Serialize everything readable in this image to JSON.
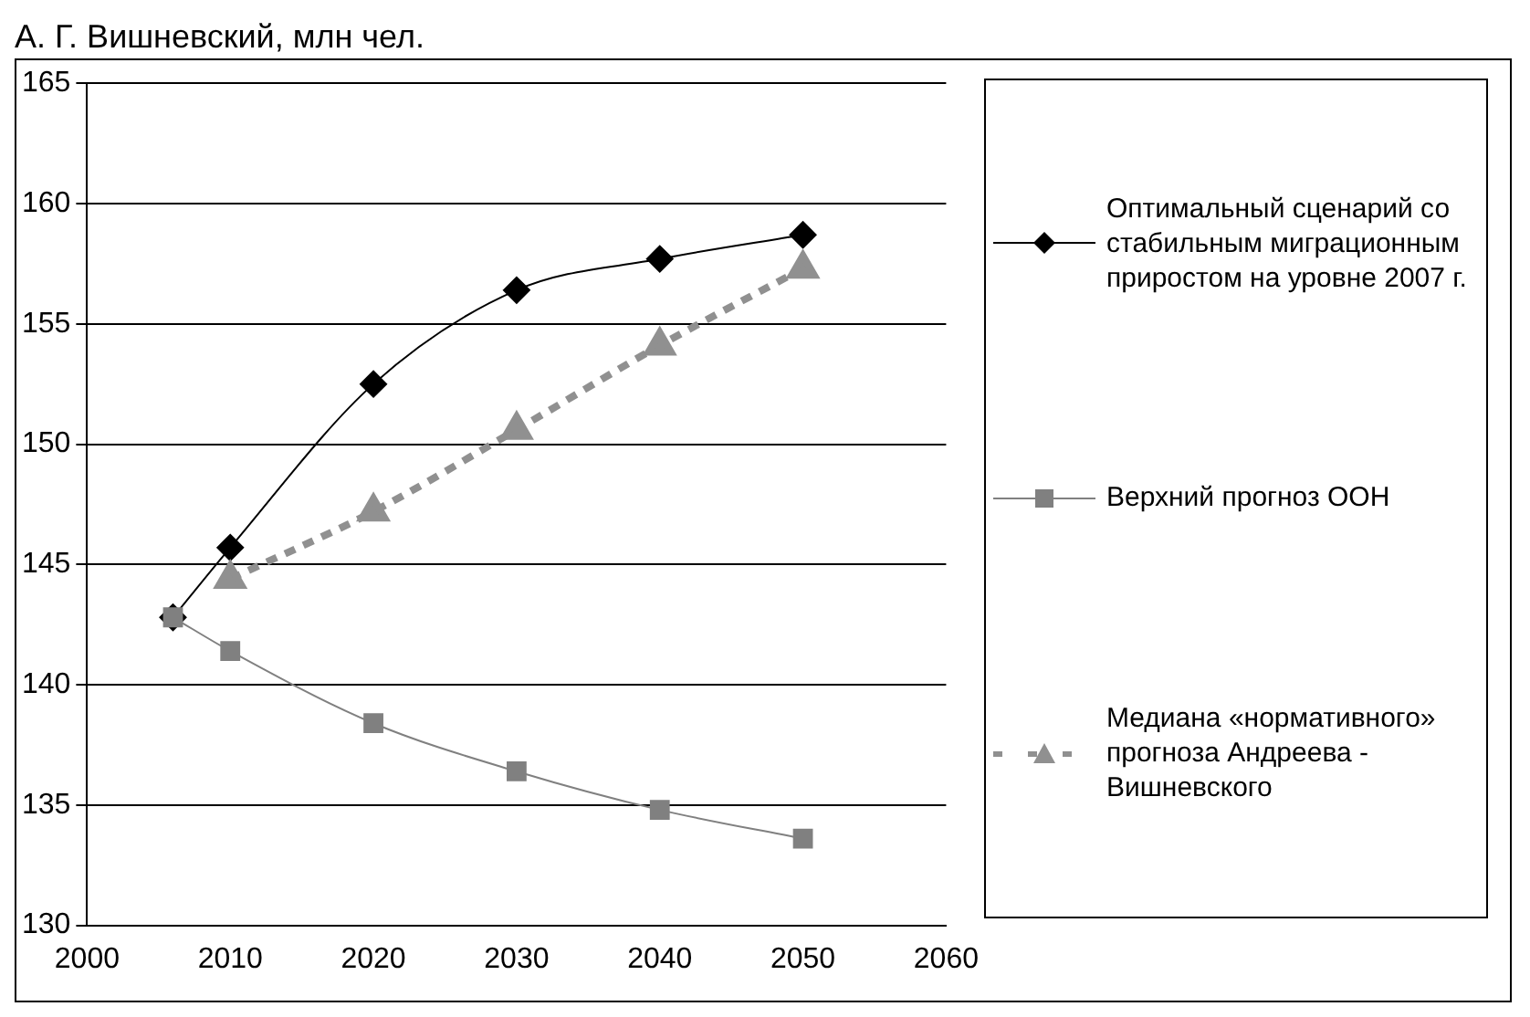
{
  "chart_data": {
    "type": "line",
    "title": "А. Г. Вишневский, млн чел.",
    "xlim": [
      2000,
      2060
    ],
    "xticks": [
      2000,
      2010,
      2020,
      2030,
      2040,
      2050,
      2060
    ],
    "ylim": [
      130,
      165
    ],
    "yticks": [
      130,
      135,
      140,
      145,
      150,
      155,
      160,
      165
    ],
    "grid": "y",
    "legend": "right",
    "series": [
      {
        "name": "Оптимальный сценарий со стабильным миграционным приростом на уровне 2007 г.",
        "color": "#000000",
        "marker": "diamond",
        "line_style": "solid",
        "x": [
          2006,
          2010,
          2020,
          2030,
          2040,
          2050
        ],
        "values": [
          142.8,
          145.7,
          152.5,
          156.4,
          157.7,
          158.7
        ]
      },
      {
        "name": "Верхний прогноз ООН",
        "color": "#808080",
        "marker": "square",
        "line_style": "solid",
        "x": [
          2006,
          2010,
          2020,
          2030,
          2040,
          2050
        ],
        "values": [
          142.8,
          141.4,
          138.4,
          136.4,
          134.8,
          133.6
        ]
      },
      {
        "name": "Медиана «нормативного» прогноза Андреева - Вишневского",
        "color": "#909090",
        "marker": "triangle",
        "line_style": "dashed",
        "x": [
          2010,
          2020,
          2030,
          2040,
          2050
        ],
        "values": [
          144.4,
          147.2,
          150.6,
          154.1,
          157.3
        ]
      }
    ]
  }
}
